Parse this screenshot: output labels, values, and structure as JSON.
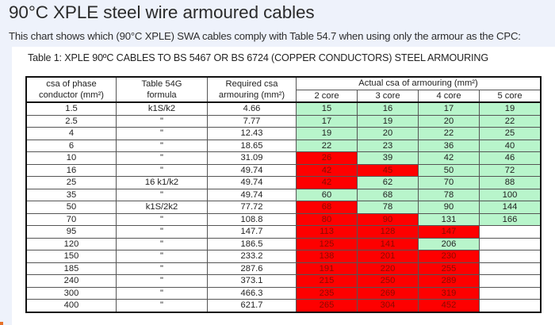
{
  "page": {
    "title": "90°C XPLE steel wire armoured cables",
    "intro": "This chart shows which (90°C XPLE) SWA cables comply with Table 54.7 when using only the armour as the CPC:"
  },
  "table": {
    "caption": "Table 1: XPLE 90ºC CABLES TO BS 5467 OR BS 6724 (COPPER CONDUCTORS) STEEL ARMOURING",
    "headers": {
      "csa_line1": "csa of phase",
      "csa_line2": "conductor (mm²)",
      "formula_line1": "Table 54G",
      "formula_line2": "formula",
      "required_line1": "Required csa",
      "required_line2": "armouring (mm²)",
      "actual_group": "Actual csa of armouring (mm²)",
      "cores": [
        "2 core",
        "3 core",
        "4 core",
        "5 core"
      ]
    },
    "colors": {
      "complies": "#b8f5cb",
      "fails": "#fe0000",
      "not_available": "#ffffff"
    },
    "rows": [
      {
        "csa": "1.5",
        "formula": "k1S/k2",
        "required": "4.66",
        "cells": [
          {
            "v": "15",
            "s": "ok"
          },
          {
            "v": "16",
            "s": "ok"
          },
          {
            "v": "17",
            "s": "ok"
          },
          {
            "v": "19",
            "s": "ok"
          }
        ]
      },
      {
        "csa": "2.5",
        "formula": "\"",
        "required": "7.77",
        "cells": [
          {
            "v": "17",
            "s": "ok"
          },
          {
            "v": "19",
            "s": "ok"
          },
          {
            "v": "20",
            "s": "ok"
          },
          {
            "v": "22",
            "s": "ok"
          }
        ]
      },
      {
        "csa": "4",
        "formula": "\"",
        "required": "12.43",
        "cells": [
          {
            "v": "19",
            "s": "ok"
          },
          {
            "v": "20",
            "s": "ok"
          },
          {
            "v": "22",
            "s": "ok"
          },
          {
            "v": "25",
            "s": "ok"
          }
        ]
      },
      {
        "csa": "6",
        "formula": "\"",
        "required": "18.65",
        "cells": [
          {
            "v": "22",
            "s": "ok"
          },
          {
            "v": "23",
            "s": "ok"
          },
          {
            "v": "36",
            "s": "ok"
          },
          {
            "v": "40",
            "s": "ok"
          }
        ]
      },
      {
        "csa": "10",
        "formula": "\"",
        "required": "31.09",
        "cells": [
          {
            "v": "26",
            "s": "fail"
          },
          {
            "v": "39",
            "s": "ok"
          },
          {
            "v": "42",
            "s": "ok"
          },
          {
            "v": "46",
            "s": "ok"
          }
        ]
      },
      {
        "csa": "16",
        "formula": "\"",
        "required": "49.74",
        "cells": [
          {
            "v": "42",
            "s": "fail"
          },
          {
            "v": "45",
            "s": "fail"
          },
          {
            "v": "50",
            "s": "ok"
          },
          {
            "v": "72",
            "s": "ok"
          }
        ]
      },
      {
        "csa": "25",
        "formula": "16 k1/k2",
        "required": "49.74",
        "cells": [
          {
            "v": "42",
            "s": "fail"
          },
          {
            "v": "62",
            "s": "ok"
          },
          {
            "v": "70",
            "s": "ok"
          },
          {
            "v": "88",
            "s": "ok"
          }
        ]
      },
      {
        "csa": "35",
        "formula": "\"",
        "required": "49.74",
        "cells": [
          {
            "v": "60",
            "s": "ok"
          },
          {
            "v": "68",
            "s": "ok"
          },
          {
            "v": "78",
            "s": "ok"
          },
          {
            "v": "100",
            "s": "ok"
          }
        ]
      },
      {
        "csa": "50",
        "formula": "k1S/2k2",
        "required": "77.72",
        "cells": [
          {
            "v": "68",
            "s": "fail"
          },
          {
            "v": "78",
            "s": "ok"
          },
          {
            "v": "90",
            "s": "ok"
          },
          {
            "v": "144",
            "s": "ok"
          }
        ]
      },
      {
        "csa": "70",
        "formula": "\"",
        "required": "108.8",
        "cells": [
          {
            "v": "80",
            "s": "fail"
          },
          {
            "v": "90",
            "s": "fail"
          },
          {
            "v": "131",
            "s": "ok"
          },
          {
            "v": "166",
            "s": "ok"
          }
        ]
      },
      {
        "csa": "95",
        "formula": "\"",
        "required": "147.7",
        "cells": [
          {
            "v": "113",
            "s": "fail"
          },
          {
            "v": "128",
            "s": "fail"
          },
          {
            "v": "147",
            "s": "fail"
          },
          {
            "v": "",
            "s": "blank"
          }
        ]
      },
      {
        "csa": "120",
        "formula": "\"",
        "required": "186.5",
        "cells": [
          {
            "v": "125",
            "s": "fail"
          },
          {
            "v": "141",
            "s": "fail"
          },
          {
            "v": "206",
            "s": "ok"
          },
          {
            "v": "",
            "s": "blank"
          }
        ]
      },
      {
        "csa": "150",
        "formula": "\"",
        "required": "233.2",
        "cells": [
          {
            "v": "138",
            "s": "fail"
          },
          {
            "v": "201",
            "s": "fail"
          },
          {
            "v": "230",
            "s": "fail"
          },
          {
            "v": "",
            "s": "blank"
          }
        ]
      },
      {
        "csa": "185",
        "formula": "\"",
        "required": "287.6",
        "cells": [
          {
            "v": "191",
            "s": "fail"
          },
          {
            "v": "220",
            "s": "fail"
          },
          {
            "v": "255",
            "s": "fail"
          },
          {
            "v": "",
            "s": "blank"
          }
        ]
      },
      {
        "csa": "240",
        "formula": "\"",
        "required": "373.1",
        "cells": [
          {
            "v": "215",
            "s": "fail"
          },
          {
            "v": "250",
            "s": "fail"
          },
          {
            "v": "289",
            "s": "fail"
          },
          {
            "v": "",
            "s": "blank"
          }
        ]
      },
      {
        "csa": "300",
        "formula": "\"",
        "required": "466.3",
        "cells": [
          {
            "v": "235",
            "s": "fail"
          },
          {
            "v": "269",
            "s": "fail"
          },
          {
            "v": "319",
            "s": "fail"
          },
          {
            "v": "",
            "s": "blank"
          }
        ]
      },
      {
        "csa": "400",
        "formula": "\"",
        "required": "621.7",
        "cells": [
          {
            "v": "265",
            "s": "fail"
          },
          {
            "v": "304",
            "s": "fail"
          },
          {
            "v": "452",
            "s": "fail"
          },
          {
            "v": "",
            "s": "blank"
          }
        ]
      }
    ]
  }
}
